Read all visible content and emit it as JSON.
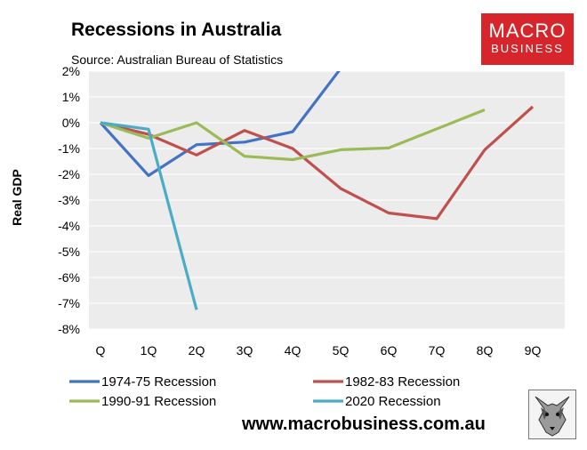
{
  "chart_data": {
    "type": "line",
    "title": "Recessions in Australia",
    "subtitle": "Source: Australian Bureau of Statistics",
    "xlabel": "",
    "ylabel": "Real GDP",
    "categories": [
      "Q",
      "1Q",
      "2Q",
      "3Q",
      "4Q",
      "5Q",
      "6Q",
      "7Q",
      "8Q",
      "9Q"
    ],
    "ylim": [
      -8,
      2
    ],
    "yticks": [
      2,
      1,
      0,
      -1,
      -2,
      -3,
      -4,
      -5,
      -6,
      -7,
      -8
    ],
    "ytick_labels": [
      "2%",
      "1%",
      "0%",
      "-1%",
      "-2%",
      "-3%",
      "-4%",
      "-5%",
      "-6%",
      "-7%",
      "-8%"
    ],
    "grid": true,
    "legend_position": "bottom",
    "series": [
      {
        "name": "1974-75 Recession",
        "color": "#4472c4",
        "points": [
          [
            0,
            0
          ],
          [
            1,
            -2.05
          ],
          [
            2,
            -0.85
          ],
          [
            3,
            -0.75
          ],
          [
            4,
            -0.35
          ],
          [
            5,
            2.1
          ]
        ]
      },
      {
        "name": "1982-83 Recession",
        "color": "#c0504d",
        "points": [
          [
            0,
            0
          ],
          [
            1,
            -0.45
          ],
          [
            2,
            -1.25
          ],
          [
            3,
            -0.3
          ],
          [
            4,
            -1.0
          ],
          [
            5,
            -2.55
          ],
          [
            6,
            -3.5
          ],
          [
            7,
            -3.72
          ],
          [
            8,
            -1.05
          ],
          [
            9,
            0.62
          ]
        ]
      },
      {
        "name": "1990-91 Recession",
        "color": "#9bbb59",
        "points": [
          [
            0,
            0
          ],
          [
            1,
            -0.6
          ],
          [
            2,
            0.0
          ],
          [
            3,
            -1.3
          ],
          [
            4,
            -1.43
          ],
          [
            5,
            -1.05
          ],
          [
            6,
            -0.98
          ],
          [
            8,
            0.5
          ]
        ]
      },
      {
        "name": "2020 Recession",
        "color": "#4bacc6",
        "points": [
          [
            0,
            0
          ],
          [
            1,
            -0.25
          ],
          [
            2,
            -7.25
          ]
        ]
      }
    ]
  },
  "branding": {
    "logo_line1": "MACRO",
    "logo_line2": "BUSINESS",
    "website": "www.macrobusiness.com.au",
    "logo_color": "#d6262b",
    "plot_bg": "#ececec"
  }
}
